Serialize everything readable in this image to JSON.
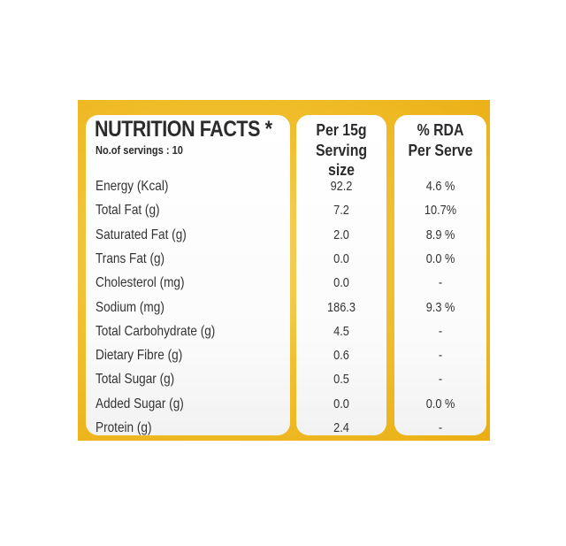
{
  "panel": {
    "title": "NUTRITION FACTS *",
    "servings": "No.of servings : 10",
    "col2_header": [
      "Per 15g",
      "Serving size"
    ],
    "col3_header": [
      "% RDA",
      "Per Serve"
    ]
  },
  "rows": [
    {
      "label": "Energy (Kcal)",
      "per_serving": "92.2",
      "rda": "4.6 %"
    },
    {
      "label": "Total Fat (g)",
      "per_serving": "7.2",
      "rda": "10.7%"
    },
    {
      "label": "Saturated Fat (g)",
      "per_serving": "2.0",
      "rda": "8.9 %"
    },
    {
      "label": "Trans Fat (g)",
      "per_serving": "0.0",
      "rda": "0.0 %"
    },
    {
      "label": "Cholesterol (mg)",
      "per_serving": "0.0",
      "rda": "-"
    },
    {
      "label": "Sodium (mg)",
      "per_serving": "186.3",
      "rda": "9.3 %"
    },
    {
      "label": "Total Carbohydrate (g)",
      "per_serving": "4.5",
      "rda": "-"
    },
    {
      "label": "Dietary Fibre (g)",
      "per_serving": "0.6",
      "rda": "-"
    },
    {
      "label": "Total Sugar (g)",
      "per_serving": "0.5",
      "rda": "-"
    },
    {
      "label": "Added Sugar (g)",
      "per_serving": "0.0",
      "rda": "0.0 %"
    },
    {
      "label": "Protein (g)",
      "per_serving": "2.4",
      "rda": "-"
    }
  ]
}
